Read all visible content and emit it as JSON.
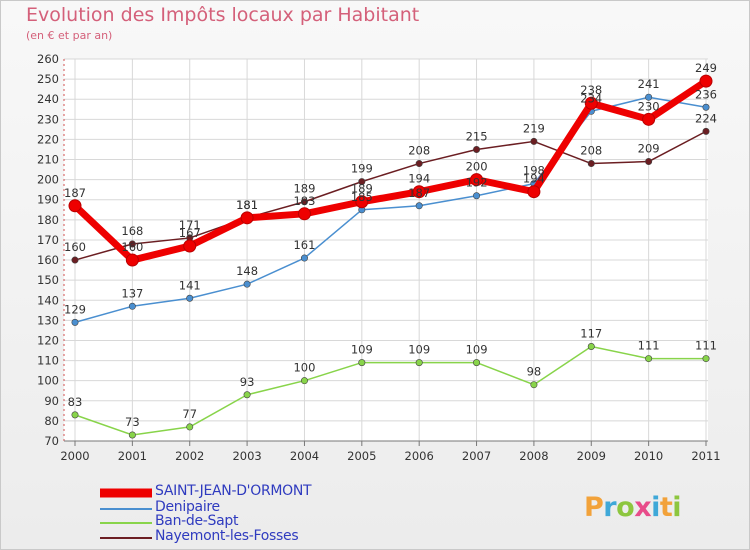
{
  "header": {
    "title": "Evolution des Impôts locaux par Habitant",
    "subtitle": "(en € et par an)"
  },
  "brand": {
    "logo_text": "Proxiti"
  },
  "chart_data": {
    "type": "line",
    "title": "Evolution des Impôts locaux par Habitant",
    "subtitle": "(en € et par an)",
    "xlabel": "",
    "ylabel": "",
    "x": [
      "2000",
      "2001",
      "2002",
      "2003",
      "2004",
      "2005",
      "2006",
      "2007",
      "2008",
      "2009",
      "2010",
      "2011"
    ],
    "ylim": [
      70,
      260
    ],
    "yticks": [
      70,
      80,
      90,
      100,
      110,
      120,
      130,
      140,
      150,
      160,
      170,
      180,
      190,
      200,
      210,
      220,
      230,
      240,
      250,
      260
    ],
    "grid": true,
    "legend_position": "bottom-left",
    "series": [
      {
        "name": "SAINT-JEAN-D'ORMONT",
        "color": "#ee0000",
        "values": [
          187,
          160,
          167,
          181,
          183,
          189,
          194,
          200,
          194,
          238,
          230,
          249
        ]
      },
      {
        "name": "Denipaire",
        "color": "#4a8fd0",
        "values": [
          129,
          137,
          141,
          148,
          161,
          185,
          187,
          192,
          198,
          234,
          241,
          236
        ]
      },
      {
        "name": "Ban-de-Sapt",
        "color": "#88d44a",
        "values": [
          83,
          73,
          77,
          93,
          100,
          109,
          109,
          109,
          98,
          117,
          111,
          111
        ]
      },
      {
        "name": "Nayemont-les-Fosses",
        "color": "#6b1e22",
        "values": [
          160,
          168,
          171,
          181,
          189,
          199,
          208,
          215,
          219,
          208,
          209,
          224
        ]
      }
    ]
  }
}
